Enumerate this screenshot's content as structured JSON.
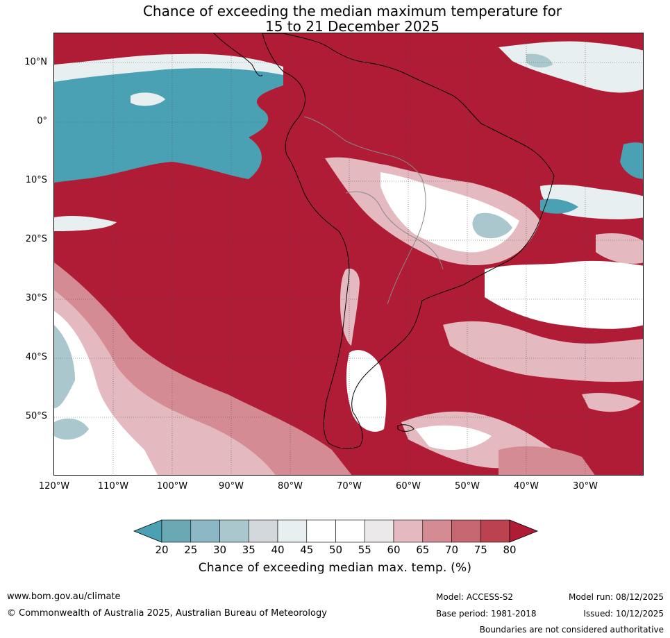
{
  "title": {
    "line1": "Chance of exceeding the median maximum temperature for",
    "line2": "15 to 21 December 2025"
  },
  "axes": {
    "lat_labels": [
      "10°N",
      "0°",
      "10°S",
      "20°S",
      "30°S",
      "40°S",
      "50°S"
    ],
    "lon_labels": [
      "120°W",
      "110°W",
      "100°W",
      "90°W",
      "80°W",
      "70°W",
      "60°W",
      "50°W",
      "40°W",
      "30°W"
    ]
  },
  "colorbar": {
    "ticks": [
      "20",
      "25",
      "30",
      "35",
      "40",
      "45",
      "50",
      "55",
      "60",
      "65",
      "70",
      "75",
      "80"
    ],
    "colors": [
      "#6aa8b4",
      "#8bb8c4",
      "#a9c7cd",
      "#d2d8db",
      "#e8eff1",
      "#ffffff",
      "#ffffff",
      "#ebe9ea",
      "#e4b9bf",
      "#d48b94",
      "#c56670",
      "#bb4350"
    ],
    "under_color": "#4aa1b3",
    "over_color": "#b01c35",
    "label": "Chance of exceeding median max. temp. (%)"
  },
  "colors": {
    "warm": "#b01c35",
    "cool": "#4aa1b3"
  },
  "footer": {
    "website": "www.bom.gov.au/climate",
    "copyright": "© Commonwealth of Australia 2025, Australian Bureau of Meteorology",
    "model": "Model: ACCESS-S2",
    "base_period": "Base period: 1981-2018",
    "model_run": "Model run: 08/12/2025",
    "issued": "Issued: 10/12/2025",
    "disclaimer": "Boundaries are not considered authoritative"
  }
}
